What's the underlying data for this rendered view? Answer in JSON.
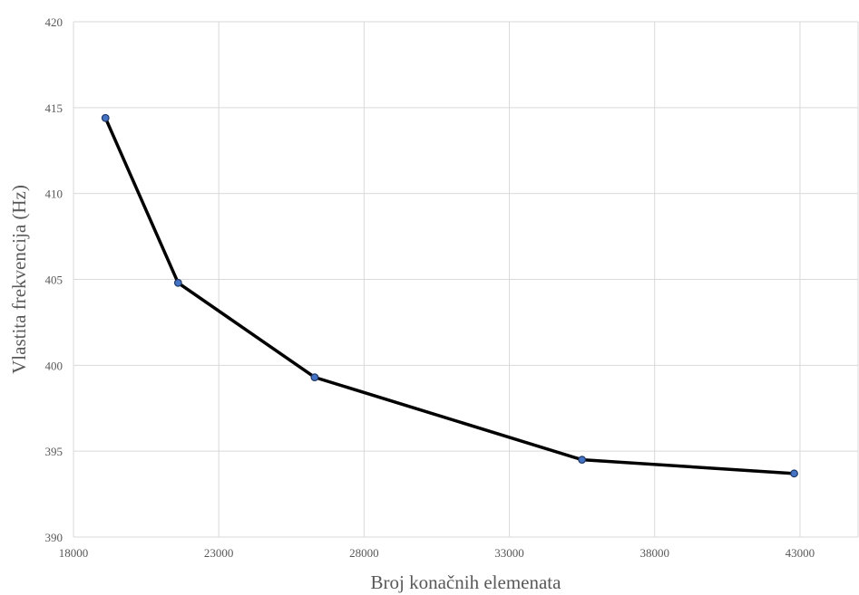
{
  "chart_data": {
    "type": "line",
    "title": "",
    "xlabel": "Broj konačnih elemenata",
    "ylabel": "Vlastita frekvencija (Hz)",
    "xlim": [
      18000,
      45000
    ],
    "ylim": [
      390,
      420
    ],
    "xticks": [
      18000,
      23000,
      28000,
      33000,
      38000,
      43000
    ],
    "yticks": [
      390,
      395,
      400,
      405,
      410,
      415,
      420
    ],
    "grid": true,
    "legend": "none",
    "series": [
      {
        "x": [
          19100,
          21600,
          26300,
          35500,
          42800
        ],
        "y": [
          414.4,
          404.8,
          399.3,
          394.5,
          393.7
        ]
      }
    ],
    "colors": {
      "line": "#000000",
      "marker_fill": "#4472c4",
      "marker_stroke": "#1f3864",
      "grid": "#d9d9d9",
      "text": "#595959"
    }
  }
}
